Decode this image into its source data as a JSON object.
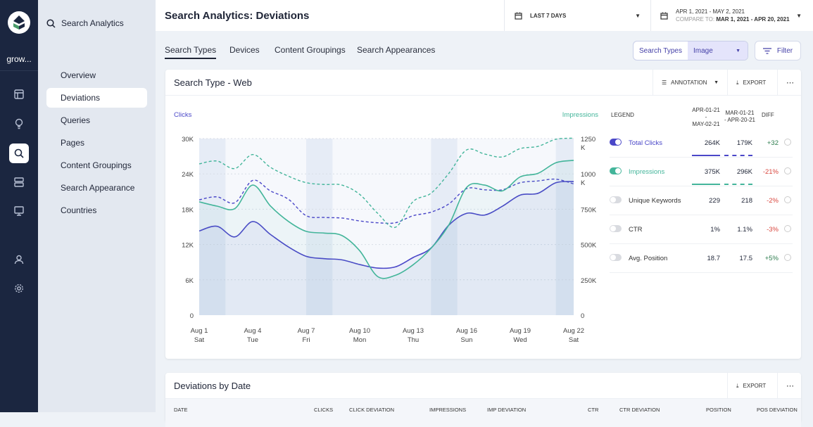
{
  "workspace": "grow...",
  "rail_icons": [
    "layout-icon",
    "lightbulb-icon",
    "search-icon",
    "server-icon",
    "monitor-icon",
    "user-icon",
    "gear-icon"
  ],
  "nav": {
    "header": "Search Analytics",
    "items": [
      {
        "label": "Overview"
      },
      {
        "label": "Deviations",
        "active": true
      },
      {
        "label": "Queries"
      },
      {
        "label": "Pages"
      },
      {
        "label": "Content Groupings"
      },
      {
        "label": "Search Appearance"
      },
      {
        "label": "Countries"
      }
    ]
  },
  "header": {
    "title": "Search Analytics: Deviations",
    "range_label": "LAST 7 DAYS",
    "date_range": "APR 1, 2021 - MAY 2, 2021",
    "compare_label": "COMPARE TO:",
    "compare_range": "MAR 1, 2021 - APR 20, 2021"
  },
  "tabs": [
    "Search Types",
    "Devices",
    "Content Groupings",
    "Search Appearances"
  ],
  "search_types": {
    "label": "Search Types",
    "value": "Image"
  },
  "filter_label": "Filter",
  "card1": {
    "title": "Search Type - Web",
    "annotation": "ANNOTATION",
    "export": "EXPORT"
  },
  "legend": {
    "header": "LEGEND",
    "col1": [
      "APR-01-21",
      "-",
      "MAY-02-21"
    ],
    "col2": [
      "MAR-01-21",
      "- APR-20-21"
    ],
    "diff": "DIFF",
    "rows": [
      {
        "name": "Total Clicks",
        "v1": "264K",
        "v2": "179K",
        "diff": "+32",
        "on": true,
        "color": "#4a47c8",
        "pos": true
      },
      {
        "name": "Impressions",
        "v1": "375K",
        "v2": "296K",
        "diff": "-21%",
        "on": true,
        "color": "#43b59a",
        "pos": false
      },
      {
        "name": "Unique Keywords",
        "v1": "229",
        "v2": "218",
        "diff": "-2%",
        "on": false,
        "pos": false
      },
      {
        "name": "CTR",
        "v1": "1%",
        "v2": "1.1%",
        "diff": "-3%",
        "on": false,
        "pos": false
      },
      {
        "name": "Avg. Position",
        "v1": "18.7",
        "v2": "17.5",
        "diff": "+5%",
        "on": false,
        "pos": true
      }
    ]
  },
  "colors": {
    "clicks": "#4a47c8",
    "impressions": "#43b59a",
    "positive": "#2e7d4f",
    "negative": "#d9473f"
  },
  "chart_data": {
    "type": "line",
    "ylabel_left": "Clicks",
    "ylabel_right": "Impressions",
    "yticks_left": [
      "0",
      "6K",
      "12K",
      "18K",
      "24K",
      "30K"
    ],
    "yticks_right": [
      "0",
      "250K",
      "500K",
      "750K",
      "1000\nK",
      "1250\nK"
    ],
    "ylim_left": [
      0,
      30000
    ],
    "ylim_right": [
      0,
      1250000
    ],
    "x": [
      "Aug 1",
      "Aug 2",
      "Aug 3",
      "Aug 4",
      "Aug 5",
      "Aug 6",
      "Aug 7",
      "Aug 8",
      "Aug 9",
      "Aug 10",
      "Aug 11",
      "Aug 12",
      "Aug 13",
      "Aug 14",
      "Aug 15",
      "Aug 16",
      "Aug 17",
      "Aug 18",
      "Aug 19",
      "Aug 20",
      "Aug 21",
      "Aug 22"
    ],
    "xticks": [
      {
        "date": "Aug 1",
        "day": "Sat"
      },
      {
        "date": "Aug 4",
        "day": "Tue"
      },
      {
        "date": "Aug 7",
        "day": "Fri"
      },
      {
        "date": "Aug 10",
        "day": "Mon"
      },
      {
        "date": "Aug 13",
        "day": "Thu"
      },
      {
        "date": "Aug 16",
        "day": "Sun"
      },
      {
        "date": "Aug 19",
        "day": "Wed"
      },
      {
        "date": "Aug 22",
        "day": "Sat"
      }
    ],
    "weekend_bands": [
      [
        "Aug 1",
        "Aug 2"
      ],
      [
        "Aug 7",
        "Aug 8"
      ],
      [
        "Aug 14",
        "Aug 15"
      ],
      [
        "Aug 21",
        "Aug 22"
      ]
    ],
    "grid": true,
    "series": [
      {
        "name": "Total Clicks",
        "axis": "left",
        "style": "solid",
        "values": [
          14300,
          15100,
          13300,
          15900,
          13700,
          11600,
          10000,
          9600,
          9400,
          8600,
          8000,
          8200,
          9800,
          11400,
          15300,
          17300,
          17000,
          18500,
          20400,
          20700,
          22500,
          22700
        ]
      },
      {
        "name": "Total Clicks",
        "axis": "left",
        "style": "dashed",
        "values": [
          19600,
          20100,
          19100,
          22900,
          21100,
          19700,
          16900,
          16600,
          16500,
          16000,
          15700,
          15700,
          16900,
          17500,
          18900,
          21500,
          21300,
          21300,
          22500,
          22800,
          23100,
          22300
        ]
      },
      {
        "name": "Impressions",
        "axis": "right",
        "style": "solid",
        "values": [
          802000,
          772000,
          755000,
          921000,
          772000,
          664000,
          593000,
          581000,
          564000,
          456000,
          274000,
          282000,
          357000,
          473000,
          639000,
          905000,
          921000,
          880000,
          979000,
          1004000,
          1079000,
          1096000
        ]
      },
      {
        "name": "Impressions",
        "axis": "right",
        "style": "dashed",
        "values": [
          1071000,
          1091000,
          1038000,
          1137000,
          1046000,
          984000,
          938000,
          925000,
          921000,
          855000,
          722000,
          622000,
          805000,
          863000,
          1004000,
          1170000,
          1141000,
          1120000,
          1179000,
          1195000,
          1245000,
          1253000
        ]
      }
    ]
  },
  "card2": {
    "title": "Deviations by Date",
    "export": "EXPORT",
    "columns": [
      "DATE",
      "CLICKS",
      "CLICK DEVIATION",
      "IMPRESSIONS",
      "IMP DEVIATION",
      "CTR",
      "CTR DEVIATION",
      "POSITION",
      "POS DEVIATION"
    ]
  }
}
